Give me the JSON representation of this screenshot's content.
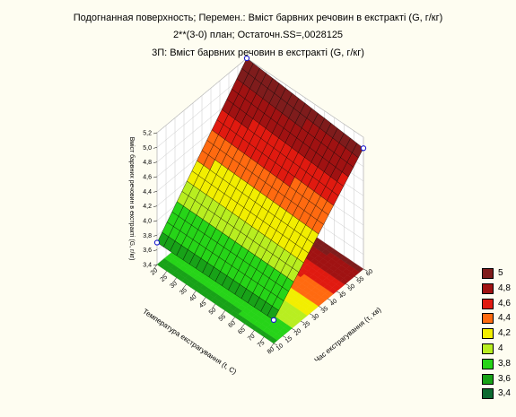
{
  "chart_data": {
    "type": "surface3d",
    "title_lines": [
      "Подогнанная поверхность; Перемен.: Вміст барвних речовин в екстракті (G, г/кг)",
      "2**(3-0) план; Остаточн.SS=,0028125",
      "3П: Вміст барвних речовин в екстракті (G, г/кг)"
    ],
    "x_axis": {
      "label": "Температура екстрагування (t, C)",
      "range": [
        20,
        80
      ],
      "ticks": [
        "20",
        "25",
        "30",
        "35",
        "40",
        "45",
        "50",
        "55",
        "60",
        "65",
        "70",
        "75",
        "80"
      ]
    },
    "y_axis": {
      "label": "Час екстрагування (τ, хв)",
      "range": [
        10,
        60
      ],
      "ticks": [
        "10",
        "15",
        "20",
        "25",
        "30",
        "35",
        "40",
        "45",
        "50",
        "55",
        "60"
      ]
    },
    "z_axis": {
      "label": "Вміст барвних речовин в екстракті (G, г/кг)",
      "range": [
        3.4,
        5.2
      ],
      "ticks": [
        "3,4",
        "3,6",
        "3,8",
        "4,0",
        "4,2",
        "4,4",
        "4,6",
        "4,8",
        "5,0",
        "5,2"
      ]
    },
    "surface": {
      "corners": [
        {
          "x": 20,
          "y": 10,
          "z": 3.7
        },
        {
          "x": 20,
          "y": 60,
          "z": 5.2
        },
        {
          "x": 80,
          "y": 10,
          "z": 3.72
        },
        {
          "x": 80,
          "y": 60,
          "z": 5.05
        }
      ]
    },
    "observed_points": [
      {
        "x": 20,
        "y": 10,
        "z": 3.7
      },
      {
        "x": 20,
        "y": 60,
        "z": 5.2
      },
      {
        "x": 80,
        "y": 10,
        "z": 3.72
      },
      {
        "x": 80,
        "y": 60,
        "z": 5.05
      }
    ],
    "legend": [
      {
        "label": "5",
        "color": "#7f1c1c"
      },
      {
        "label": "4,8",
        "color": "#a01212"
      },
      {
        "label": "4,6",
        "color": "#e01a10"
      },
      {
        "label": "4,4",
        "color": "#ff6a10"
      },
      {
        "label": "4,2",
        "color": "#f2ee00"
      },
      {
        "label": "4",
        "color": "#b8ee20"
      },
      {
        "label": "3,8",
        "color": "#26d418"
      },
      {
        "label": "3,6",
        "color": "#18a218"
      },
      {
        "label": "3,4",
        "color": "#0c6a30"
      }
    ],
    "grid": true,
    "legend_position": "right"
  }
}
